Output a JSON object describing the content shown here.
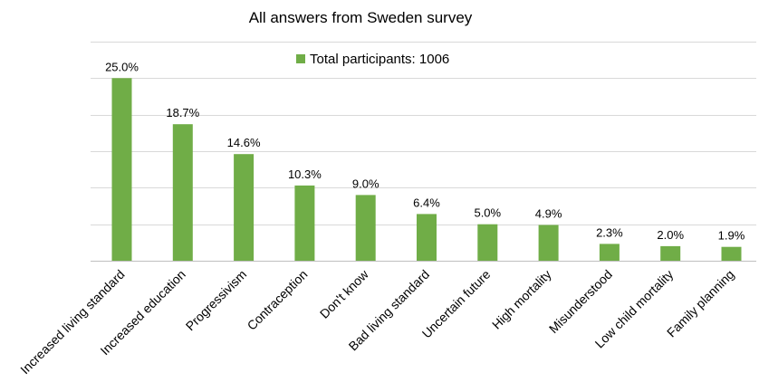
{
  "chart_data": {
    "type": "bar",
    "title": "All answers from Sweden survey",
    "xlabel": "",
    "ylabel": "",
    "ylim": [
      0,
      30
    ],
    "grid": true,
    "legend_position": "top-center",
    "bar_color": "#70ad47",
    "categories": [
      "Increased living standard",
      "Increased education",
      "Progressivism",
      "Contraception",
      "Don't know",
      "Bad living standard",
      "Uncertain future",
      "High  mortality",
      "Misunderstood",
      "Low child mortality",
      "Family planning"
    ],
    "series": [
      {
        "name": "Total participants: 1006",
        "values": [
          25.0,
          18.7,
          14.6,
          10.3,
          9.0,
          6.4,
          5.0,
          4.9,
          2.3,
          2.0,
          1.9
        ]
      }
    ],
    "data_labels": [
      "25.0%",
      "18.7%",
      "14.6%",
      "10.3%",
      "9.0%",
      "6.4%",
      "5.0%",
      "4.9%",
      "2.3%",
      "2.0%",
      "1.9%"
    ]
  }
}
